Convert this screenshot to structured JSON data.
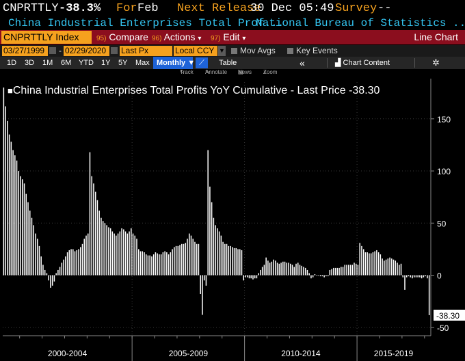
{
  "header": {
    "ticker": "CNPRTTLY",
    "last_value": "-38.3%",
    "for_label": "For",
    "for_value": "Feb",
    "next_release_label": "Next Release",
    "next_release_value": "30 Dec 05:49",
    "survey_label": "Survey",
    "survey_value": "--",
    "description": "China Industrial Enterprises Total Prof...",
    "source": "National Bureau of Statistics ..."
  },
  "toolbar": {
    "security": "CNPRTTLY Index",
    "compare_num": "95)",
    "compare_label": "Compare",
    "actions_num": "96)",
    "actions_label": "Actions",
    "edit_num": "97)",
    "edit_label": "Edit",
    "chart_title": "Line Chart"
  },
  "settings": {
    "start_date": "03/27/1999",
    "separator": "-",
    "end_date": "02/29/2020",
    "field": "Last Px",
    "currency": "Local CCY",
    "mov_avgs": "Mov Avgs",
    "key_events": "Key Events"
  },
  "periods": {
    "buttons": [
      "1D",
      "3D",
      "1M",
      "6M",
      "YTD",
      "1Y",
      "5Y",
      "Max"
    ],
    "frequency": "Monthly ▼",
    "table": "Table",
    "chart_content": "Chart Content"
  },
  "tools": {
    "track": "Track",
    "annotate": "Annotate",
    "news": "News",
    "zoom": "Zoom"
  },
  "colors": {
    "background": "#000000",
    "accent_orange": "#f5a11e",
    "toolbar_red": "#8b0e1e",
    "link_cyan": "#34c6f2",
    "selected_blue": "#1e63d8",
    "bars": "#ffffff"
  },
  "chart_data": {
    "type": "bar",
    "title": "China Industrial Enterprises Total Profits YoY Cumulative - Last Price -38.30",
    "x_label_groups": [
      "2000-2004",
      "2005-2009",
      "2010-2014",
      "2015-2019"
    ],
    "ylim": [
      -58,
      182
    ],
    "yticks": [
      150,
      100,
      50,
      0,
      -50
    ],
    "last_price_label": "-38.30",
    "grid": true,
    "start": "1999-03",
    "end": "2020-02",
    "frequency": "monthly",
    "values": [
      180,
      162,
      148,
      135,
      128,
      120,
      115,
      110,
      100,
      95,
      92,
      88,
      78,
      70,
      62,
      55,
      48,
      40,
      35,
      28,
      18,
      10,
      5,
      2,
      -5,
      -12,
      -10,
      -6,
      2,
      5,
      8,
      12,
      15,
      18,
      22,
      24,
      25,
      25,
      23,
      24,
      25,
      27,
      30,
      35,
      38,
      40,
      118,
      95,
      88,
      80,
      72,
      62,
      55,
      52,
      50,
      48,
      46,
      45,
      42,
      40,
      38,
      40,
      42,
      45,
      44,
      42,
      40,
      42,
      45,
      40,
      38,
      35,
      25,
      23,
      23,
      22,
      20,
      19,
      19,
      18,
      20,
      22,
      21,
      20,
      20,
      22,
      23,
      22,
      20,
      22,
      25,
      27,
      28,
      28,
      29,
      30,
      30,
      31,
      35,
      40,
      38,
      35,
      32,
      30,
      30,
      -18,
      -38,
      -5,
      -10,
      120,
      85,
      70,
      55,
      48,
      45,
      42,
      38,
      32,
      30,
      30,
      28,
      28,
      27,
      26,
      26,
      25,
      25,
      24,
      -5,
      -2,
      -2,
      -3,
      -3,
      -4,
      -3,
      -3,
      2,
      5,
      8,
      10,
      17,
      14,
      12,
      13,
      15,
      14,
      12,
      11,
      12,
      13,
      13,
      12,
      12,
      11,
      10,
      8,
      11,
      12,
      10,
      9,
      8,
      7,
      5,
      2,
      -3,
      -2,
      1,
      0,
      0,
      -1,
      -1,
      -2,
      -1,
      -1,
      5,
      6,
      7,
      7,
      7,
      7,
      8,
      8,
      10,
      10,
      10,
      10,
      10,
      12,
      11,
      10,
      31,
      28,
      25,
      22,
      22,
      21,
      21,
      22,
      23,
      24,
      22,
      20,
      16,
      14,
      15,
      16,
      17,
      16,
      15,
      14,
      12,
      10,
      11,
      -2,
      -14,
      -2,
      -1,
      -2,
      -3,
      -2,
      -2,
      -2,
      -2,
      -3,
      -2,
      -1,
      -3,
      -38.3
    ]
  }
}
